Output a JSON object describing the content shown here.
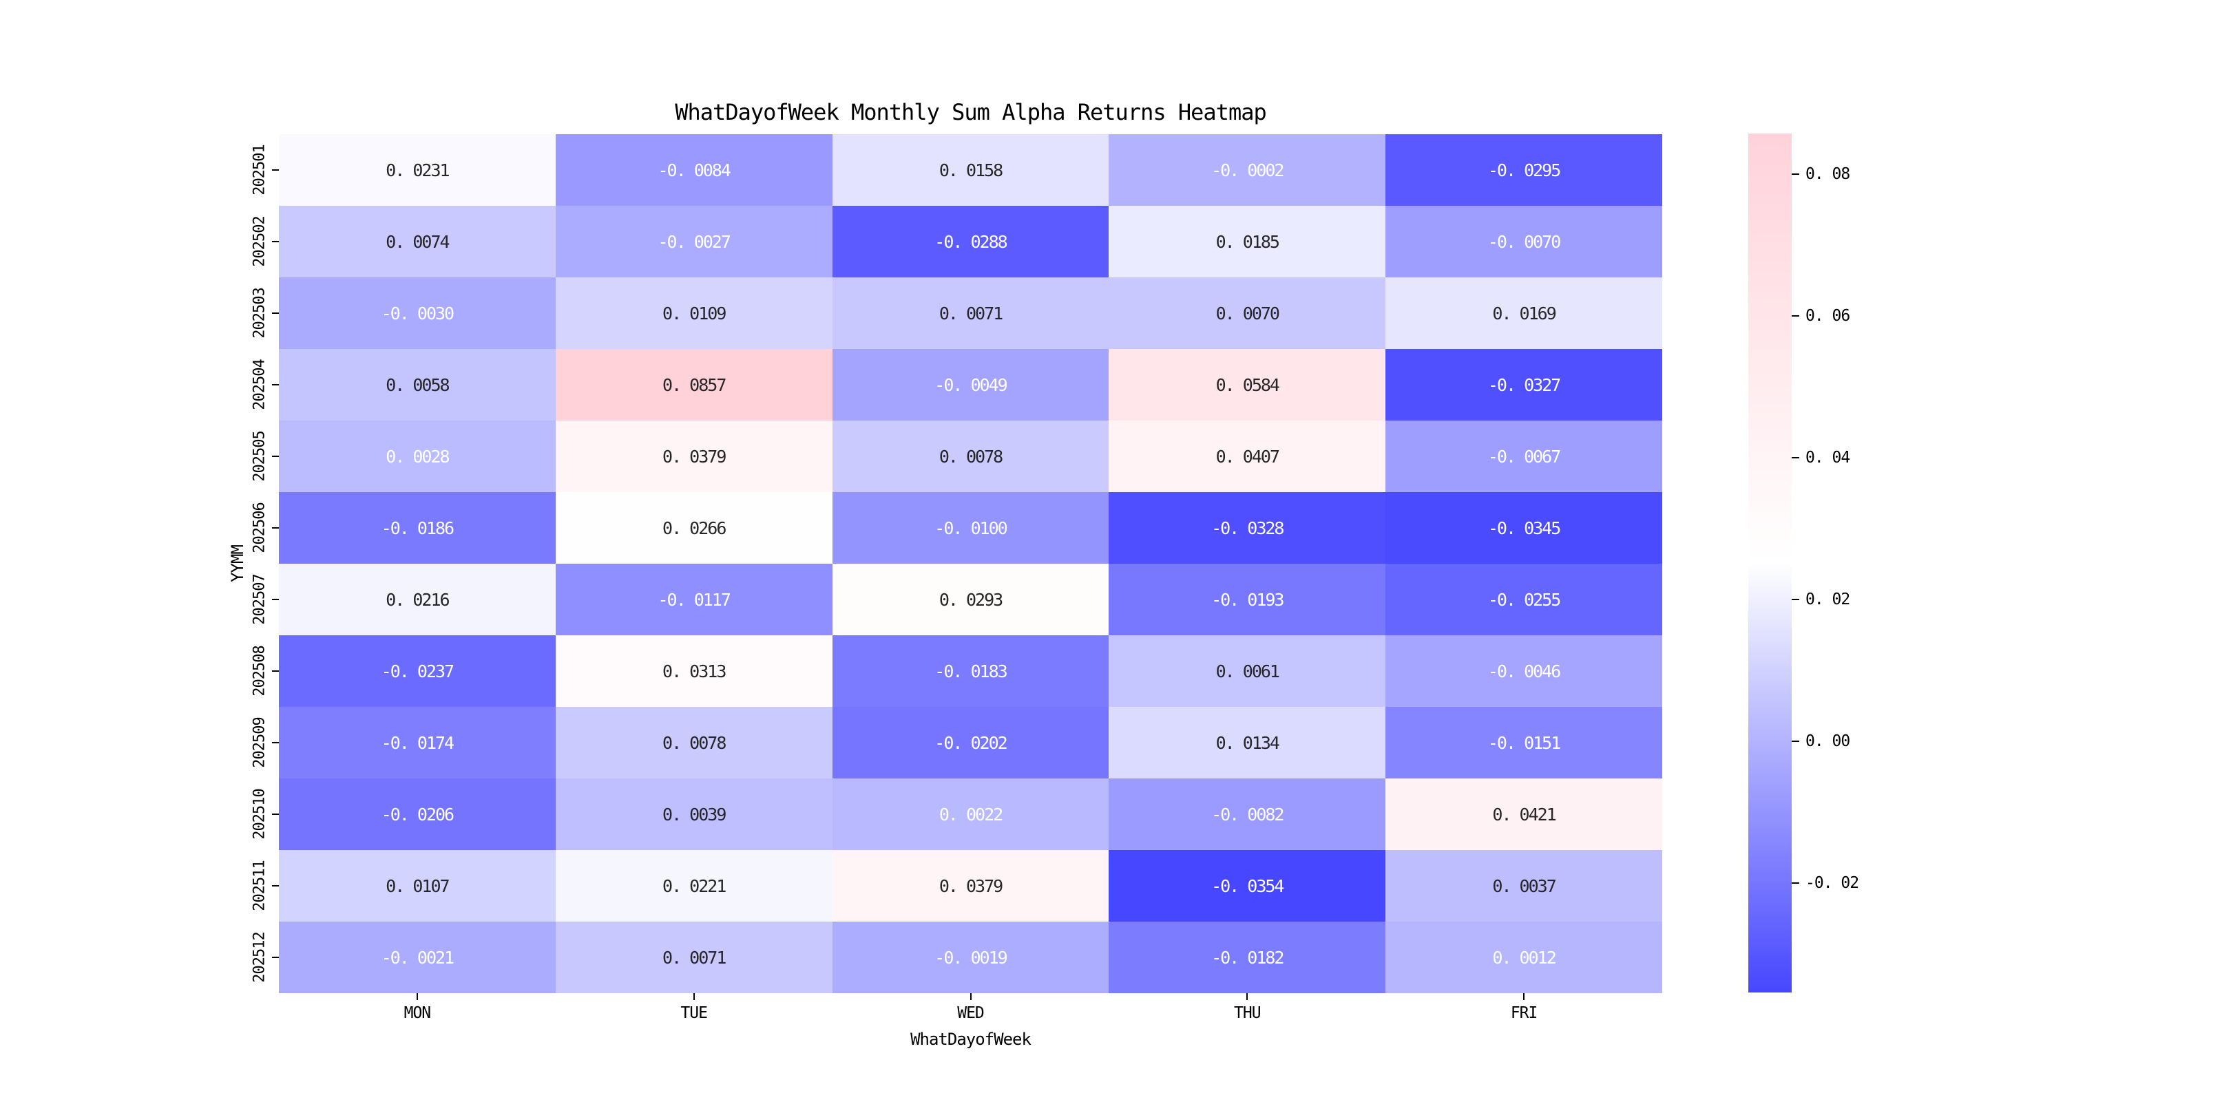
{
  "chart": {
    "title": "WhatDayofWeek Monthly Sum Alpha Returns Heatmap",
    "xlabel": "WhatDayofWeek",
    "ylabel": "YYMM"
  },
  "chart_data": {
    "type": "heatmap",
    "x_categories": [
      "MON",
      "TUE",
      "WED",
      "THU",
      "FRI"
    ],
    "y_categories": [
      "202501",
      "202502",
      "202503",
      "202504",
      "202505",
      "202506",
      "202507",
      "202508",
      "202509",
      "202510",
      "202511",
      "202512"
    ],
    "values": [
      [
        0.0231,
        -0.0084,
        0.0158,
        -0.0002,
        -0.0295
      ],
      [
        0.0074,
        -0.0027,
        -0.0288,
        0.0185,
        -0.007
      ],
      [
        -0.003,
        0.0109,
        0.0071,
        0.007,
        0.0169
      ],
      [
        0.0058,
        0.0857,
        -0.0049,
        0.0584,
        -0.0327
      ],
      [
        0.0028,
        0.0379,
        0.0078,
        0.0407,
        -0.0067
      ],
      [
        -0.0186,
        0.0266,
        -0.01,
        -0.0328,
        -0.0345
      ],
      [
        0.0216,
        -0.0117,
        0.0293,
        -0.0193,
        -0.0255
      ],
      [
        -0.0237,
        0.0313,
        -0.0183,
        0.0061,
        -0.0046
      ],
      [
        -0.0174,
        0.0078,
        -0.0202,
        0.0134,
        -0.0151
      ],
      [
        -0.0206,
        0.0039,
        0.0022,
        -0.0082,
        0.0421
      ],
      [
        0.0107,
        0.0221,
        0.0379,
        -0.0354,
        0.0037
      ],
      [
        -0.0021,
        0.0071,
        -0.0019,
        -0.0182,
        0.0012
      ]
    ],
    "vmin": -0.0354,
    "vmax": 0.0857,
    "annot_decimals": 4,
    "colorbar": {
      "ticks": [
        0.08,
        0.06,
        0.04,
        0.02,
        0.0,
        -0.02
      ],
      "tick_decimals": 2,
      "position": "right"
    },
    "colors": {
      "low": "#0000FF",
      "mid": "#FFFFFF",
      "high": "#FFC0CB",
      "alpha": 0.72,
      "dark_text": "#262626",
      "light_text": "#FFFFFF",
      "luminance_threshold": 0.408
    },
    "grid": false,
    "title": "WhatDayofWeek Monthly Sum Alpha Returns Heatmap",
    "xlabel": "WhatDayofWeek",
    "ylabel": "YYMM"
  },
  "layout_note": "values are monthly sum alpha returns per weekday"
}
